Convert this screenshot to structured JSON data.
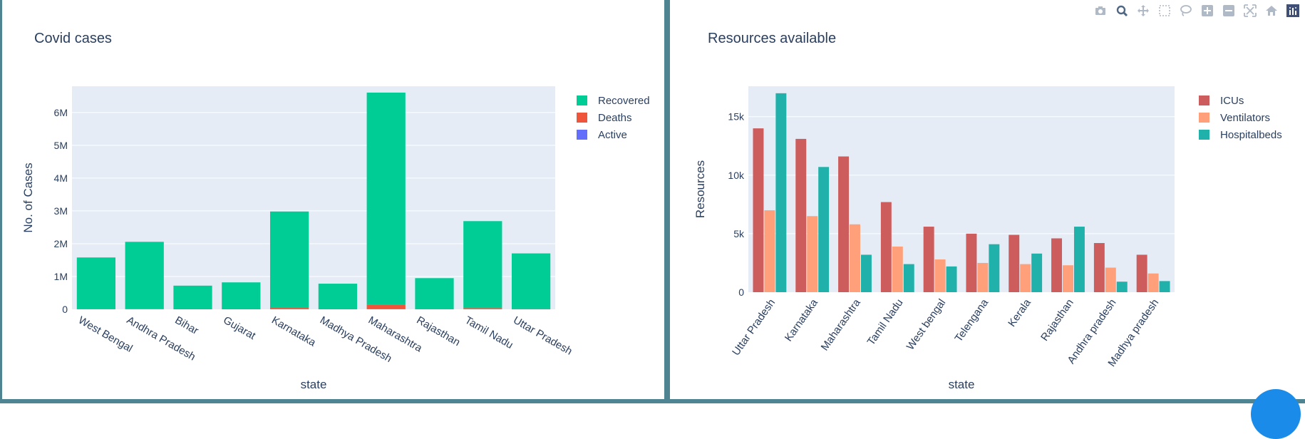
{
  "colors": {
    "recovered": "#00cc96",
    "deaths": "#ef553b",
    "active": "#636efa",
    "icus": "#cd5c5c",
    "ventilators": "#ffa07a",
    "hospitalbeds": "#20b2aa",
    "plot_bg": "#e5ecf6",
    "text": "#2a3f5f"
  },
  "modebar": [
    "camera-icon",
    "zoom-icon",
    "pan-icon",
    "box-select-icon",
    "lasso-icon",
    "zoom-in-icon",
    "zoom-out-icon",
    "autoscale-icon",
    "home-icon",
    "plotly-logo-icon"
  ],
  "chart_data": [
    {
      "type": "bar",
      "barmode": "stack",
      "title": "Covid cases",
      "xlabel": "state",
      "ylabel": "No. of Cases",
      "categories": [
        "West Bengal",
        "Andhra Pradesh",
        "Bihar",
        "Gujarat",
        "Karnataka",
        "Madhya Pradesh",
        "Maharashtra",
        "Rajasthan",
        "Tamil Nadu",
        "Uttar Pradesh"
      ],
      "series": [
        {
          "name": "Active",
          "values": [
            2000,
            3000,
            1000,
            1000,
            2000,
            1000,
            6000,
            1000,
            2000,
            1000
          ]
        },
        {
          "name": "Deaths",
          "values": [
            18000,
            14000,
            10000,
            10000,
            40000,
            10000,
            140000,
            9000,
            36000,
            23000
          ]
        },
        {
          "name": "Recovered",
          "values": [
            1560000,
            2040000,
            710000,
            810000,
            2940000,
            770000,
            6460000,
            940000,
            2650000,
            1680000
          ]
        }
      ],
      "legend": [
        "Recovered",
        "Deaths",
        "Active"
      ],
      "ylim": [
        0,
        6800000
      ],
      "yticks": [
        0,
        1000000,
        2000000,
        3000000,
        4000000,
        5000000,
        6000000
      ],
      "yticklabels": [
        "0",
        "1M",
        "2M",
        "3M",
        "4M",
        "5M",
        "6M"
      ],
      "grid": true,
      "legend_position": "top-right"
    },
    {
      "type": "bar",
      "barmode": "group",
      "title": "Resources available",
      "xlabel": "state",
      "ylabel": "Resources",
      "categories": [
        "Uttar Pradesh",
        "Karnataka",
        "Maharashtra",
        "Tamil Nadu",
        "West bengal",
        "Telengana",
        "Kerala",
        "Rajasthan",
        "Andhra pradesh",
        "Madhya pradesh"
      ],
      "series": [
        {
          "name": "ICUs",
          "values": [
            14000,
            13100,
            11600,
            7700,
            5600,
            5000,
            4900,
            4600,
            4200,
            3200
          ]
        },
        {
          "name": "Ventilators",
          "values": [
            7000,
            6500,
            5800,
            3900,
            2800,
            2500,
            2400,
            2300,
            2100,
            1600
          ]
        },
        {
          "name": "Hospitalbeds",
          "values": [
            17000,
            10700,
            3200,
            2400,
            2200,
            4100,
            3300,
            5600,
            900,
            950
          ]
        }
      ],
      "ylim": [
        0,
        17600
      ],
      "yticks": [
        0,
        5000,
        10000,
        15000
      ],
      "yticklabels": [
        "0",
        "5k",
        "10k",
        "15k"
      ],
      "grid": true,
      "legend_position": "top-right"
    }
  ]
}
